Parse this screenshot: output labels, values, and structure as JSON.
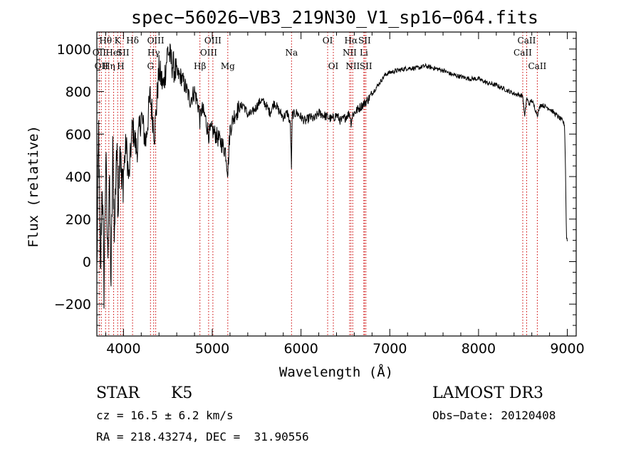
{
  "chart_data": {
    "type": "line",
    "title": "spec−56026−VB3_219N30_V1_sp16−064.fits",
    "xlabel": "Wavelength (Å)",
    "ylabel": "Flux (relative)",
    "xlim": [
      3700,
      9100
    ],
    "ylim": [
      -350,
      1080
    ],
    "xticks": [
      4000,
      5000,
      6000,
      7000,
      8000,
      9000
    ],
    "yticks": [
      -200,
      0,
      200,
      400,
      600,
      800,
      1000
    ],
    "ytick_labels": [
      "−200",
      "0",
      "200",
      "400",
      "600",
      "800",
      "1000"
    ],
    "series": [
      {
        "name": "flux",
        "x": [
          3700,
          3720,
          3740,
          3760,
          3780,
          3800,
          3820,
          3840,
          3860,
          3880,
          3900,
          3920,
          3940,
          3960,
          3980,
          4000,
          4030,
          4060,
          4100,
          4150,
          4200,
          4250,
          4300,
          4350,
          4400,
          4450,
          4500,
          4530,
          4560,
          4600,
          4650,
          4700,
          4750,
          4800,
          4850,
          4861,
          4880,
          4920,
          4960,
          5000,
          5050,
          5100,
          5150,
          5175,
          5200,
          5250,
          5300,
          5350,
          5400,
          5450,
          5500,
          5550,
          5600,
          5650,
          5700,
          5750,
          5800,
          5850,
          5880,
          5893,
          5900,
          5950,
          6000,
          6050,
          6100,
          6150,
          6200,
          6250,
          6300,
          6350,
          6400,
          6450,
          6500,
          6550,
          6563,
          6580,
          6600,
          6650,
          6700,
          6750,
          6800,
          6850,
          6900,
          6950,
          7000,
          7100,
          7200,
          7300,
          7400,
          7500,
          7600,
          7700,
          7800,
          7900,
          8000,
          8100,
          8200,
          8300,
          8400,
          8498,
          8520,
          8542,
          8570,
          8600,
          8662,
          8700,
          8750,
          8800,
          8850,
          8900,
          8950,
          8970,
          8980,
          8990,
          9000
        ],
        "y": [
          -60,
          620,
          -90,
          400,
          -120,
          500,
          30,
          380,
          -100,
          500,
          120,
          550,
          280,
          600,
          330,
          420,
          560,
          380,
          640,
          520,
          690,
          560,
          780,
          600,
          900,
          820,
          1000,
          950,
          920,
          880,
          870,
          820,
          760,
          800,
          720,
          660,
          720,
          680,
          600,
          620,
          590,
          560,
          520,
          420,
          620,
          690,
          720,
          740,
          690,
          700,
          730,
          760,
          740,
          700,
          750,
          710,
          680,
          700,
          640,
          430,
          690,
          700,
          680,
          660,
          680,
          670,
          700,
          690,
          680,
          670,
          690,
          660,
          680,
          700,
          650,
          690,
          700,
          720,
          740,
          760,
          790,
          820,
          850,
          880,
          890,
          900,
          910,
          910,
          920,
          910,
          900,
          880,
          870,
          860,
          860,
          840,
          830,
          810,
          790,
          780,
          680,
          770,
          740,
          760,
          690,
          740,
          730,
          720,
          700,
          680,
          660,
          640,
          430,
          120,
          100
        ]
      }
    ],
    "line_markers": [
      {
        "wavelength": 3727,
        "label": "OII",
        "row": 2
      },
      {
        "wavelength": 3750,
        "label": "OII",
        "row": 3
      },
      {
        "wavelength": 3798,
        "label": "Hθ",
        "row": 1
      },
      {
        "wavelength": 3835,
        "label": "Hη",
        "row": 3
      },
      {
        "wavelength": 3889,
        "label": "HeI",
        "row": 2
      },
      {
        "wavelength": 3934,
        "label": "K",
        "row": 1
      },
      {
        "wavelength": 3969,
        "label": "H",
        "row": 3
      },
      {
        "wavelength": 3995,
        "label": "SII",
        "row": 2
      },
      {
        "wavelength": 4102,
        "label": "Hδ",
        "row": 1
      },
      {
        "wavelength": 4304,
        "label": "G",
        "row": 3
      },
      {
        "wavelength": 4340,
        "label": "Hγ",
        "row": 2
      },
      {
        "wavelength": 4363,
        "label": "OIII",
        "row": 1
      },
      {
        "wavelength": 4861,
        "label": "Hβ",
        "row": 3
      },
      {
        "wavelength": 4959,
        "label": "OIII",
        "row": 2
      },
      {
        "wavelength": 5007,
        "label": "OIII",
        "row": 1
      },
      {
        "wavelength": 5175,
        "label": "Mg",
        "row": 3
      },
      {
        "wavelength": 5893,
        "label": "Na",
        "row": 2
      },
      {
        "wavelength": 6300,
        "label": "OI",
        "row": 1
      },
      {
        "wavelength": 6364,
        "label": "OI",
        "row": 3
      },
      {
        "wavelength": 6548,
        "label": "NII",
        "row": 2
      },
      {
        "wavelength": 6563,
        "label": "Hα",
        "row": 1
      },
      {
        "wavelength": 6583,
        "label": "NII",
        "row": 3
      },
      {
        "wavelength": 6708,
        "label": "Li",
        "row": 2
      },
      {
        "wavelength": 6716,
        "label": "SII",
        "row": 1
      },
      {
        "wavelength": 6731,
        "label": "SII",
        "row": 3
      },
      {
        "wavelength": 8498,
        "label": "CaII",
        "row": 2
      },
      {
        "wavelength": 8542,
        "label": "CaII",
        "row": 1
      },
      {
        "wavelength": 8662,
        "label": "CaII",
        "row": 3
      }
    ],
    "line_marker_color": "#cc0000",
    "line_color": "#000000"
  },
  "info": {
    "class": "STAR",
    "subclass": "K5",
    "survey": "LAMOST DR3",
    "cz": "cz = 16.5 ± 6.2 km/s",
    "obs_date": "Obs−Date: 20120408",
    "coords": "RA = 218.43274, DEC =  31.90556"
  }
}
